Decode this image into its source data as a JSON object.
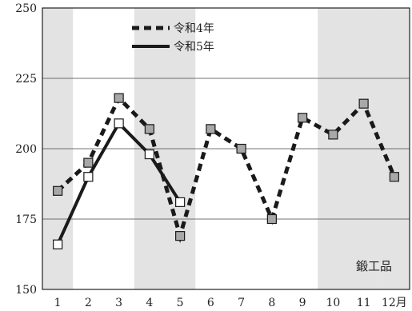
{
  "chart_data": {
    "type": "line",
    "title": "",
    "xlabel": "",
    "ylabel": "",
    "categories": [
      "1",
      "2",
      "3",
      "4",
      "5",
      "6",
      "7",
      "8",
      "9",
      "10",
      "11",
      "12月"
    ],
    "ylim": [
      150,
      250
    ],
    "yticks": [
      "150",
      "175",
      "200",
      "225",
      "250"
    ],
    "grid": true,
    "legend_position": "top-left",
    "annotation": "鍛工品",
    "shaded_months": [
      "1",
      "4",
      "5",
      "10",
      "11",
      "12月"
    ],
    "colors": {
      "shade": "#e3e3e3",
      "grid": "#444444",
      "series_line": "#1a1a1a",
      "filled_marker": "#a8a8a8",
      "open_marker": "#ffffff"
    },
    "series": [
      {
        "name": "令和4年",
        "style": "dashed",
        "marker": "gray-square",
        "values": [
          185,
          195,
          218,
          207,
          169,
          207,
          200,
          175,
          211,
          205,
          216,
          190
        ]
      },
      {
        "name": "令和5年",
        "style": "solid",
        "marker": "white-square",
        "values": [
          166,
          190,
          209,
          198,
          181,
          null,
          null,
          null,
          null,
          null,
          null,
          null
        ]
      }
    ]
  }
}
